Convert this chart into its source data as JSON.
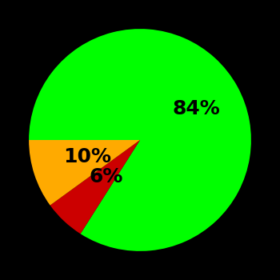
{
  "slices": [
    84,
    6,
    10
  ],
  "colors": [
    "#00ff00",
    "#cc0000",
    "#ffaa00"
  ],
  "labels": [
    "84%",
    "6%",
    "10%"
  ],
  "background_color": "#000000",
  "label_fontsize": 18,
  "label_color": "#000000",
  "startangle": 180,
  "counterclock": false,
  "figsize": [
    3.5,
    3.5
  ],
  "dpi": 100,
  "label_radii": [
    0.58,
    0.45,
    0.5
  ]
}
